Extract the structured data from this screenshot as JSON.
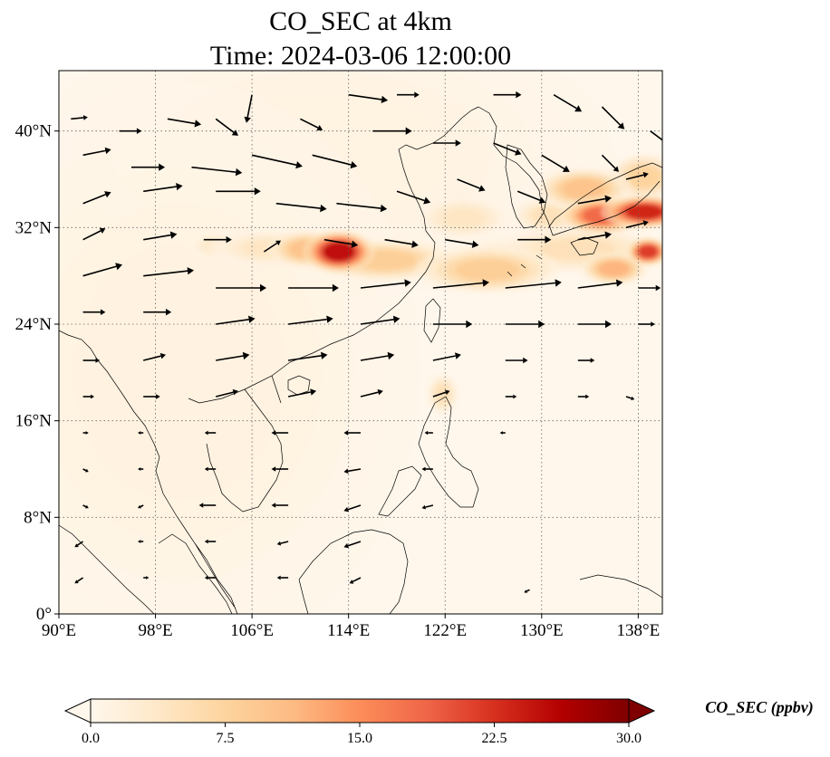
{
  "chart_data": {
    "type": "heatmap",
    "title_line1": "CO_SEC at 4km",
    "title_line2": "Time: 2024-03-06 12:00:00",
    "variable": "CO_SEC",
    "level": "4km",
    "time": "2024-03-06 12:00:00",
    "map": {
      "lon_range": [
        90,
        140
      ],
      "lat_range": [
        0,
        45
      ],
      "x_ticks": [
        {
          "value": 90,
          "label": "90°E"
        },
        {
          "value": 98,
          "label": "98°E"
        },
        {
          "value": 106,
          "label": "106°E"
        },
        {
          "value": 114,
          "label": "114°E"
        },
        {
          "value": 122,
          "label": "122°E"
        },
        {
          "value": 130,
          "label": "130°E"
        },
        {
          "value": 138,
          "label": "138°E"
        }
      ],
      "y_ticks": [
        {
          "value": 0,
          "label": "0°"
        },
        {
          "value": 8,
          "label": "8°N"
        },
        {
          "value": 16,
          "label": "16°N"
        },
        {
          "value": 24,
          "label": "24°N"
        },
        {
          "value": 32,
          "label": "32°N"
        },
        {
          "value": 40,
          "label": "40°N"
        }
      ],
      "gridlines": "dotted",
      "coastlines": true
    },
    "colorbar": {
      "label": "CO_SEC (ppbv)",
      "min": 0.0,
      "max": 30.0,
      "extend": "both",
      "colormap": "OrRd",
      "colors": [
        "#fff7ec",
        "#fee8c8",
        "#fdd49e",
        "#fdbb84",
        "#fc8d59",
        "#ef6548",
        "#d7301f",
        "#b30000",
        "#7f0000"
      ],
      "ticks": [
        {
          "value": 0.0,
          "label": "0.0"
        },
        {
          "value": 7.5,
          "label": "7.5"
        },
        {
          "value": 15.0,
          "label": "15.0"
        },
        {
          "value": 22.5,
          "label": "22.5"
        },
        {
          "value": 30.0,
          "label": "30.0"
        }
      ]
    },
    "plumes": [
      {
        "lon": 113.2,
        "lat": 30.0,
        "sx": 1.5,
        "sy": 0.9,
        "value": 30
      },
      {
        "lon": 110.5,
        "lat": 30.2,
        "sx": 1.6,
        "sy": 0.8,
        "value": 12
      },
      {
        "lon": 117.0,
        "lat": 29.3,
        "sx": 3.0,
        "sy": 0.9,
        "value": 10
      },
      {
        "lon": 107.5,
        "lat": 30.3,
        "sx": 2.5,
        "sy": 0.8,
        "value": 5
      },
      {
        "lon": 103.0,
        "lat": 30.5,
        "sx": 1.2,
        "sy": 0.6,
        "value": 4
      },
      {
        "lon": 125.5,
        "lat": 28.5,
        "sx": 3.0,
        "sy": 1.0,
        "value": 10
      },
      {
        "lon": 128.5,
        "lat": 29.6,
        "sx": 3.0,
        "sy": 0.8,
        "value": 6
      },
      {
        "lon": 123.5,
        "lat": 32.8,
        "sx": 2.0,
        "sy": 0.9,
        "value": 5
      },
      {
        "lon": 133.0,
        "lat": 30.2,
        "sx": 3.5,
        "sy": 1.0,
        "value": 6
      },
      {
        "lon": 136.0,
        "lat": 28.6,
        "sx": 1.4,
        "sy": 0.7,
        "value": 14
      },
      {
        "lon": 138.8,
        "lat": 30.0,
        "sx": 0.9,
        "sy": 0.6,
        "value": 26
      },
      {
        "lon": 138.5,
        "lat": 33.3,
        "sx": 1.8,
        "sy": 0.7,
        "value": 28
      },
      {
        "lon": 135.0,
        "lat": 33.0,
        "sx": 1.8,
        "sy": 0.8,
        "value": 22
      },
      {
        "lon": 133.5,
        "lat": 35.2,
        "sx": 2.0,
        "sy": 0.9,
        "value": 12
      },
      {
        "lon": 138.5,
        "lat": 36.2,
        "sx": 1.5,
        "sy": 1.0,
        "value": 9
      },
      {
        "lon": 130.5,
        "lat": 33.0,
        "sx": 1.5,
        "sy": 0.8,
        "value": 6
      },
      {
        "lon": 121.8,
        "lat": 18.2,
        "sx": 0.7,
        "sy": 0.9,
        "value": 6
      },
      {
        "lon": 100.0,
        "lat": 20.0,
        "sx": 10.0,
        "sy": 12.0,
        "value": 1.5
      },
      {
        "lon": 112.0,
        "lat": 38.0,
        "sx": 12.0,
        "sy": 6.0,
        "value": 1.2
      }
    ],
    "wind_vectors": [
      {
        "lon": 91,
        "lat": 41,
        "u": 3,
        "v": 0.3
      },
      {
        "lon": 95,
        "lat": 40,
        "u": 4,
        "v": 0
      },
      {
        "lon": 99,
        "lat": 41,
        "u": 6,
        "v": -1
      },
      {
        "lon": 103,
        "lat": 41,
        "u": 4,
        "v": -3
      },
      {
        "lon": 106,
        "lat": 43,
        "u": -1,
        "v": -5
      },
      {
        "lon": 110,
        "lat": 41,
        "u": 4,
        "v": -2
      },
      {
        "lon": 114,
        "lat": 43,
        "u": 7,
        "v": -1
      },
      {
        "lon": 118,
        "lat": 43,
        "u": 4,
        "v": 0
      },
      {
        "lon": 126,
        "lat": 43,
        "u": 5,
        "v": 0
      },
      {
        "lon": 131,
        "lat": 43,
        "u": 5,
        "v": -3
      },
      {
        "lon": 135,
        "lat": 42,
        "u": 4,
        "v": -4
      },
      {
        "lon": 139,
        "lat": 40,
        "u": 4,
        "v": -3
      },
      {
        "lon": 92,
        "lat": 38,
        "u": 5,
        "v": 1
      },
      {
        "lon": 96,
        "lat": 37,
        "u": 6,
        "v": 0
      },
      {
        "lon": 101,
        "lat": 37,
        "u": 9,
        "v": -1
      },
      {
        "lon": 106,
        "lat": 38,
        "u": 9,
        "v": -2
      },
      {
        "lon": 111,
        "lat": 38,
        "u": 8,
        "v": -2
      },
      {
        "lon": 116,
        "lat": 40,
        "u": 7,
        "v": 0
      },
      {
        "lon": 121,
        "lat": 39,
        "u": 5,
        "v": 0
      },
      {
        "lon": 126,
        "lat": 39,
        "u": 5,
        "v": -2
      },
      {
        "lon": 130,
        "lat": 38,
        "u": 5,
        "v": -3
      },
      {
        "lon": 135,
        "lat": 38,
        "u": 3,
        "v": -3
      },
      {
        "lon": 92,
        "lat": 34,
        "u": 5,
        "v": 2
      },
      {
        "lon": 97,
        "lat": 35,
        "u": 7,
        "v": 1
      },
      {
        "lon": 103,
        "lat": 35,
        "u": 8,
        "v": 0
      },
      {
        "lon": 108,
        "lat": 34,
        "u": 9,
        "v": -1
      },
      {
        "lon": 113,
        "lat": 34,
        "u": 9,
        "v": -1
      },
      {
        "lon": 118,
        "lat": 35,
        "u": 6,
        "v": -2
      },
      {
        "lon": 123,
        "lat": 36,
        "u": 5,
        "v": -2
      },
      {
        "lon": 128,
        "lat": 35,
        "u": 5,
        "v": -2
      },
      {
        "lon": 133,
        "lat": 34,
        "u": 6,
        "v": 1
      },
      {
        "lon": 137,
        "lat": 36,
        "u": 4,
        "v": 1
      },
      {
        "lon": 92,
        "lat": 31,
        "u": 4,
        "v": 2
      },
      {
        "lon": 97,
        "lat": 31,
        "u": 6,
        "v": 1
      },
      {
        "lon": 102,
        "lat": 31,
        "u": 5,
        "v": 0
      },
      {
        "lon": 107,
        "lat": 30,
        "u": 3,
        "v": 2
      },
      {
        "lon": 112,
        "lat": 31,
        "u": 6,
        "v": -1
      },
      {
        "lon": 117,
        "lat": 31,
        "u": 6,
        "v": -1
      },
      {
        "lon": 122,
        "lat": 31,
        "u": 6,
        "v": -1
      },
      {
        "lon": 128,
        "lat": 31,
        "u": 6,
        "v": 0
      },
      {
        "lon": 133,
        "lat": 31,
        "u": 6,
        "v": 1
      },
      {
        "lon": 137,
        "lat": 32,
        "u": 4,
        "v": 1
      },
      {
        "lon": 92,
        "lat": 28,
        "u": 7,
        "v": 2
      },
      {
        "lon": 97,
        "lat": 28,
        "u": 9,
        "v": 1
      },
      {
        "lon": 103,
        "lat": 27,
        "u": 9,
        "v": 0
      },
      {
        "lon": 109,
        "lat": 27,
        "u": 9,
        "v": 0
      },
      {
        "lon": 115,
        "lat": 27,
        "u": 9,
        "v": 1
      },
      {
        "lon": 121,
        "lat": 27,
        "u": 10,
        "v": 1
      },
      {
        "lon": 127,
        "lat": 27,
        "u": 10,
        "v": 1
      },
      {
        "lon": 133,
        "lat": 27,
        "u": 8,
        "v": 1
      },
      {
        "lon": 138,
        "lat": 27,
        "u": 4,
        "v": 0
      },
      {
        "lon": 92,
        "lat": 25,
        "u": 4,
        "v": 0
      },
      {
        "lon": 97,
        "lat": 25,
        "u": 5,
        "v": 0
      },
      {
        "lon": 103,
        "lat": 24,
        "u": 7,
        "v": 1
      },
      {
        "lon": 109,
        "lat": 24,
        "u": 8,
        "v": 1
      },
      {
        "lon": 115,
        "lat": 24,
        "u": 7,
        "v": 1
      },
      {
        "lon": 121,
        "lat": 24,
        "u": 7,
        "v": 0
      },
      {
        "lon": 127,
        "lat": 24,
        "u": 7,
        "v": 0
      },
      {
        "lon": 133,
        "lat": 24,
        "u": 6,
        "v": 0
      },
      {
        "lon": 138,
        "lat": 24,
        "u": 3,
        "v": 0
      },
      {
        "lon": 92,
        "lat": 21,
        "u": 3,
        "v": 0
      },
      {
        "lon": 97,
        "lat": 21,
        "u": 4,
        "v": 1
      },
      {
        "lon": 103,
        "lat": 21,
        "u": 6,
        "v": 1
      },
      {
        "lon": 109,
        "lat": 21,
        "u": 7,
        "v": 1
      },
      {
        "lon": 115,
        "lat": 21,
        "u": 6,
        "v": 1
      },
      {
        "lon": 121,
        "lat": 21,
        "u": 5,
        "v": 1
      },
      {
        "lon": 127,
        "lat": 21,
        "u": 4,
        "v": 0
      },
      {
        "lon": 133,
        "lat": 21,
        "u": 3,
        "v": 0
      },
      {
        "lon": 92,
        "lat": 18,
        "u": 2,
        "v": 0
      },
      {
        "lon": 97,
        "lat": 18,
        "u": 3,
        "v": 0
      },
      {
        "lon": 103,
        "lat": 18,
        "u": 4,
        "v": 1
      },
      {
        "lon": 109,
        "lat": 18,
        "u": 5,
        "v": 1
      },
      {
        "lon": 115,
        "lat": 18,
        "u": 4,
        "v": 1
      },
      {
        "lon": 121,
        "lat": 18,
        "u": 3,
        "v": 1
      },
      {
        "lon": 127,
        "lat": 18,
        "u": 2,
        "v": 0
      },
      {
        "lon": 133,
        "lat": 18,
        "u": 2,
        "v": 0
      },
      {
        "lon": 137,
        "lat": 18,
        "u": 1.5,
        "v": -0.5
      },
      {
        "lon": 92,
        "lat": 15,
        "u": 1,
        "v": 0
      },
      {
        "lon": 97,
        "lat": 15,
        "u": -1,
        "v": 0
      },
      {
        "lon": 103,
        "lat": 15,
        "u": -2,
        "v": 0
      },
      {
        "lon": 109,
        "lat": 15,
        "u": -3,
        "v": 0
      },
      {
        "lon": 115,
        "lat": 15,
        "u": -3,
        "v": 0
      },
      {
        "lon": 121,
        "lat": 15,
        "u": -1.5,
        "v": 0
      },
      {
        "lon": 127,
        "lat": 15,
        "u": -1,
        "v": 0
      },
      {
        "lon": 92,
        "lat": 12,
        "u": 1,
        "v": -0.5
      },
      {
        "lon": 97,
        "lat": 12,
        "u": -1,
        "v": 0
      },
      {
        "lon": 103,
        "lat": 12,
        "u": -2,
        "v": 0
      },
      {
        "lon": 109,
        "lat": 12,
        "u": -3,
        "v": 0
      },
      {
        "lon": 115,
        "lat": 12,
        "u": -3,
        "v": -0.5
      },
      {
        "lon": 121,
        "lat": 12,
        "u": -2,
        "v": 0
      },
      {
        "lon": 92,
        "lat": 9,
        "u": 1,
        "v": -0.5
      },
      {
        "lon": 97,
        "lat": 9,
        "u": -1,
        "v": -0.5
      },
      {
        "lon": 103,
        "lat": 9,
        "u": -3,
        "v": 0
      },
      {
        "lon": 109,
        "lat": 9,
        "u": -3,
        "v": 0
      },
      {
        "lon": 115,
        "lat": 9,
        "u": -3,
        "v": -1
      },
      {
        "lon": 121,
        "lat": 9,
        "u": -2,
        "v": -0.5
      },
      {
        "lon": 92,
        "lat": 6,
        "u": -1.5,
        "v": -1
      },
      {
        "lon": 97,
        "lat": 6,
        "u": -1,
        "v": 0
      },
      {
        "lon": 103,
        "lat": 6,
        "u": -2,
        "v": 0
      },
      {
        "lon": 109,
        "lat": 6,
        "u": -2,
        "v": -0.5
      },
      {
        "lon": 115,
        "lat": 6,
        "u": -3,
        "v": -1
      },
      {
        "lon": 92,
        "lat": 3,
        "u": -1.5,
        "v": -1
      },
      {
        "lon": 97,
        "lat": 3,
        "u": 1,
        "v": 0
      },
      {
        "lon": 103,
        "lat": 3,
        "u": -2,
        "v": 0
      },
      {
        "lon": 109,
        "lat": 3,
        "u": -2,
        "v": 0
      },
      {
        "lon": 115,
        "lat": 3,
        "u": -2,
        "v": -1
      },
      {
        "lon": 129,
        "lat": 2,
        "u": -1,
        "v": -0.5
      }
    ]
  }
}
